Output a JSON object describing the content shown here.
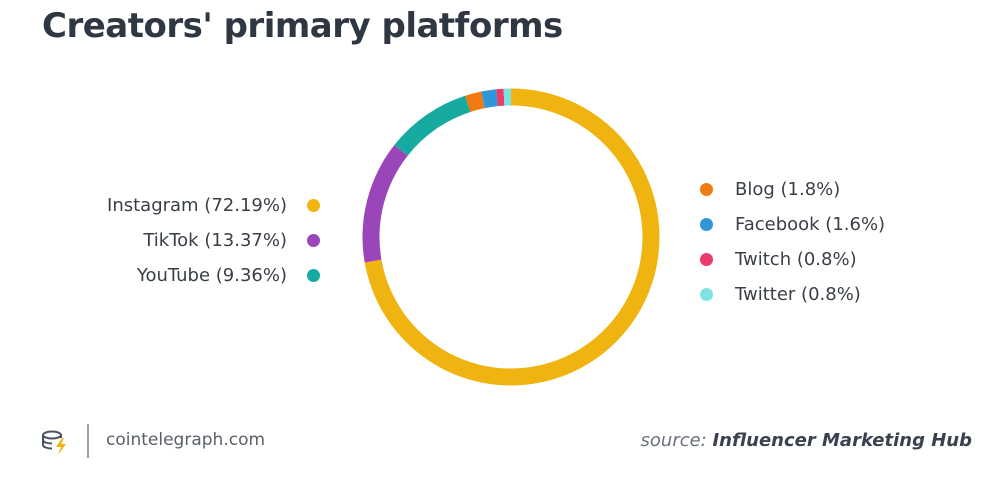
{
  "title": "Creators' primary platforms",
  "footer": {
    "site": "cointelegraph.com",
    "source_prefix": "source:",
    "source_name": "Influencer Marketing Hub",
    "logo_icon": "cointelegraph-logo-icon"
  },
  "chart_data": {
    "type": "pie",
    "variant": "donut",
    "series": [
      {
        "name": "Instagram",
        "label": "Instagram (72.19%)",
        "value": 72.19,
        "color": "#f0b411"
      },
      {
        "name": "TikTok",
        "label": "TikTok (13.37%)",
        "value": 13.37,
        "color": "#9b46b8"
      },
      {
        "name": "YouTube",
        "label": "YouTube (9.36%)",
        "value": 9.36,
        "color": "#16aaa0"
      },
      {
        "name": "Blog",
        "label": "Blog (1.8%)",
        "value": 1.8,
        "color": "#f07b12"
      },
      {
        "name": "Facebook",
        "label": "Facebook (1.6%)",
        "value": 1.6,
        "color": "#2f97d9"
      },
      {
        "name": "Twitch",
        "label": "Twitch (0.8%)",
        "value": 0.8,
        "color": "#ea3c6c"
      },
      {
        "name": "Twitter",
        "label": "Twitter (0.8%)",
        "value": 0.8,
        "color": "#7ee2e0"
      }
    ],
    "legend_left": [
      0,
      1,
      2
    ],
    "legend_right": [
      3,
      4,
      5,
      6
    ]
  }
}
